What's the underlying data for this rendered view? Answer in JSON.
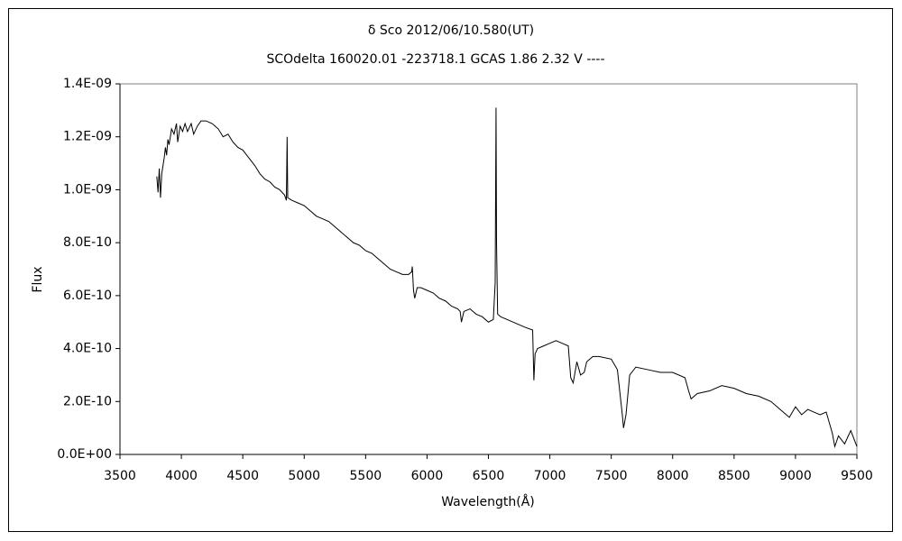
{
  "chart_data": {
    "type": "line",
    "title": "δ Sco   2012/06/10.580(UT)",
    "subtitle": "SCOdelta 160020.01 -223718.1 GCAS 1.86 2.32 V ----",
    "x_label": "Wavelength(Å)",
    "y_label": "Flux",
    "xlim": [
      3500,
      9500
    ],
    "xticks": [
      3500,
      4000,
      4500,
      5000,
      5500,
      6000,
      6500,
      7000,
      7500,
      8000,
      8500,
      9000,
      9500
    ],
    "ylim": [
      0,
      1.4e-09
    ],
    "yticks": [
      {
        "value": 0,
        "label": "0.0E+00"
      },
      {
        "value": 2e-10,
        "label": "2.0E-10"
      },
      {
        "value": 4e-10,
        "label": "4.0E-10"
      },
      {
        "value": 6e-10,
        "label": "6.0E-10"
      },
      {
        "value": 8e-10,
        "label": "8.0E-10"
      },
      {
        "value": 1e-09,
        "label": "1.0E-09"
      },
      {
        "value": 1.2e-09,
        "label": "1.2E-09"
      },
      {
        "value": 1.4e-09,
        "label": "1.4E-09"
      }
    ],
    "grid": false,
    "series": [
      {
        "color": "#000000",
        "x": [
          3800,
          3810,
          3820,
          3830,
          3840,
          3850,
          3860,
          3870,
          3880,
          3890,
          3900,
          3920,
          3940,
          3960,
          3970,
          3990,
          4010,
          4030,
          4050,
          4080,
          4100,
          4130,
          4160,
          4200,
          4250,
          4300,
          4340,
          4380,
          4420,
          4460,
          4500,
          4550,
          4600,
          4640,
          4680,
          4720,
          4760,
          4800,
          4840,
          4855,
          4861,
          4866,
          4900,
          4950,
          5000,
          5050,
          5100,
          5150,
          5200,
          5250,
          5300,
          5350,
          5400,
          5450,
          5500,
          5550,
          5600,
          5650,
          5700,
          5750,
          5800,
          5850,
          5875,
          5880,
          5890,
          5900,
          5920,
          5950,
          6000,
          6050,
          6100,
          6150,
          6200,
          6250,
          6270,
          6280,
          6300,
          6350,
          6400,
          6450,
          6500,
          6540,
          6555,
          6562,
          6566,
          6575,
          6600,
          6700,
          6800,
          6860,
          6870,
          6880,
          6900,
          6950,
          7000,
          7050,
          7100,
          7150,
          7170,
          7190,
          7220,
          7250,
          7280,
          7300,
          7350,
          7400,
          7500,
          7550,
          7590,
          7600,
          7620,
          7650,
          7700,
          7800,
          7900,
          8000,
          8100,
          8130,
          8150,
          8200,
          8300,
          8400,
          8500,
          8600,
          8700,
          8800,
          8900,
          8950,
          9000,
          9050,
          9100,
          9150,
          9200,
          9250,
          9300,
          9320,
          9350,
          9400,
          9450,
          9500
        ],
        "values": [
          1.05e-09,
          9.9e-10,
          1.08e-09,
          9.7e-10,
          1.06e-09,
          1.09e-09,
          1.12e-09,
          1.16e-09,
          1.13e-09,
          1.19e-09,
          1.17e-09,
          1.23e-09,
          1.21e-09,
          1.25e-09,
          1.18e-09,
          1.24e-09,
          1.22e-09,
          1.25e-09,
          1.22e-09,
          1.25e-09,
          1.21e-09,
          1.24e-09,
          1.26e-09,
          1.26e-09,
          1.25e-09,
          1.23e-09,
          1.2e-09,
          1.21e-09,
          1.18e-09,
          1.16e-09,
          1.15e-09,
          1.12e-09,
          1.09e-09,
          1.06e-09,
          1.04e-09,
          1.03e-09,
          1.01e-09,
          1e-09,
          9.8e-10,
          9.6e-10,
          1.2e-09,
          9.7e-10,
          9.6e-10,
          9.5e-10,
          9.4e-10,
          9.2e-10,
          9e-10,
          8.9e-10,
          8.8e-10,
          8.6e-10,
          8.4e-10,
          8.2e-10,
          8e-10,
          7.9e-10,
          7.7e-10,
          7.6e-10,
          7.4e-10,
          7.2e-10,
          7e-10,
          6.9e-10,
          6.8e-10,
          6.8e-10,
          6.9e-10,
          7.1e-10,
          6.2e-10,
          5.9e-10,
          6.3e-10,
          6.3e-10,
          6.2e-10,
          6.1e-10,
          5.9e-10,
          5.8e-10,
          5.6e-10,
          5.5e-10,
          5.4e-10,
          5e-10,
          5.4e-10,
          5.5e-10,
          5.3e-10,
          5.2e-10,
          5e-10,
          5.1e-10,
          6.5e-10,
          1.31e-09,
          8e-10,
          5.3e-10,
          5.2e-10,
          5e-10,
          4.8e-10,
          4.7e-10,
          2.8e-10,
          3.8e-10,
          4e-10,
          4.1e-10,
          4.2e-10,
          4.3e-10,
          4.2e-10,
          4.1e-10,
          2.9e-10,
          2.7e-10,
          3.5e-10,
          3e-10,
          3.1e-10,
          3.5e-10,
          3.7e-10,
          3.7e-10,
          3.6e-10,
          3.2e-10,
          1.5e-10,
          1e-10,
          1.5e-10,
          3e-10,
          3.3e-10,
          3.2e-10,
          3.1e-10,
          3.1e-10,
          2.9e-10,
          2.4e-10,
          2.1e-10,
          2.3e-10,
          2.4e-10,
          2.6e-10,
          2.5e-10,
          2.3e-10,
          2.2e-10,
          2e-10,
          1.6e-10,
          1.4e-10,
          1.8e-10,
          1.5e-10,
          1.7e-10,
          1.6e-10,
          1.5e-10,
          1.6e-10,
          8e-11,
          3e-11,
          7e-11,
          4e-11,
          9e-11,
          3e-11
        ]
      }
    ]
  }
}
